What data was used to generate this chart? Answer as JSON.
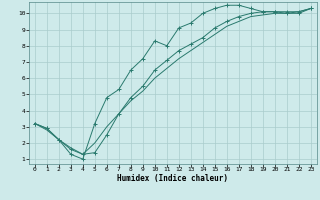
{
  "bg_color": "#ceeaea",
  "grid_color": "#aacccc",
  "line_color": "#2a7a6e",
  "xlabel": "Humidex (Indice chaleur)",
  "xlim": [
    -0.5,
    23.5
  ],
  "ylim": [
    0.7,
    10.7
  ],
  "xticks": [
    0,
    1,
    2,
    3,
    4,
    5,
    6,
    7,
    8,
    9,
    10,
    11,
    12,
    13,
    14,
    15,
    16,
    17,
    18,
    19,
    20,
    21,
    22,
    23
  ],
  "yticks": [
    1,
    2,
    3,
    4,
    5,
    6,
    7,
    8,
    9,
    10
  ],
  "line1_x": [
    0,
    1,
    2,
    3,
    4,
    5,
    6,
    7,
    8,
    9,
    10,
    11,
    12,
    13,
    14,
    15,
    16,
    17,
    18,
    19,
    20,
    21,
    22,
    23
  ],
  "line1_y": [
    3.2,
    2.9,
    2.2,
    1.3,
    1.0,
    3.2,
    4.8,
    5.3,
    6.5,
    7.2,
    8.3,
    8.0,
    9.1,
    9.4,
    10.0,
    10.3,
    10.5,
    10.5,
    10.3,
    10.1,
    10.1,
    10.0,
    10.0,
    10.3
  ],
  "line2_x": [
    0,
    1,
    2,
    3,
    4,
    5,
    6,
    7,
    8,
    9,
    10,
    11,
    12,
    13,
    14,
    15,
    16,
    17,
    18,
    19,
    20,
    21,
    22,
    23
  ],
  "line2_y": [
    3.2,
    2.9,
    2.2,
    1.6,
    1.3,
    1.4,
    2.5,
    3.8,
    4.8,
    5.5,
    6.5,
    7.1,
    7.7,
    8.1,
    8.5,
    9.1,
    9.5,
    9.8,
    10.0,
    10.1,
    10.1,
    10.1,
    10.1,
    10.3
  ],
  "line3_x": [
    0,
    1,
    2,
    3,
    4,
    5,
    6,
    7,
    8,
    9,
    10,
    11,
    12,
    13,
    14,
    15,
    16,
    17,
    18,
    19,
    20,
    21,
    22,
    23
  ],
  "line3_y": [
    3.2,
    2.8,
    2.2,
    1.7,
    1.3,
    2.0,
    3.0,
    3.8,
    4.6,
    5.2,
    6.0,
    6.6,
    7.2,
    7.7,
    8.2,
    8.7,
    9.2,
    9.5,
    9.8,
    9.9,
    10.0,
    10.0,
    10.1,
    10.3
  ]
}
